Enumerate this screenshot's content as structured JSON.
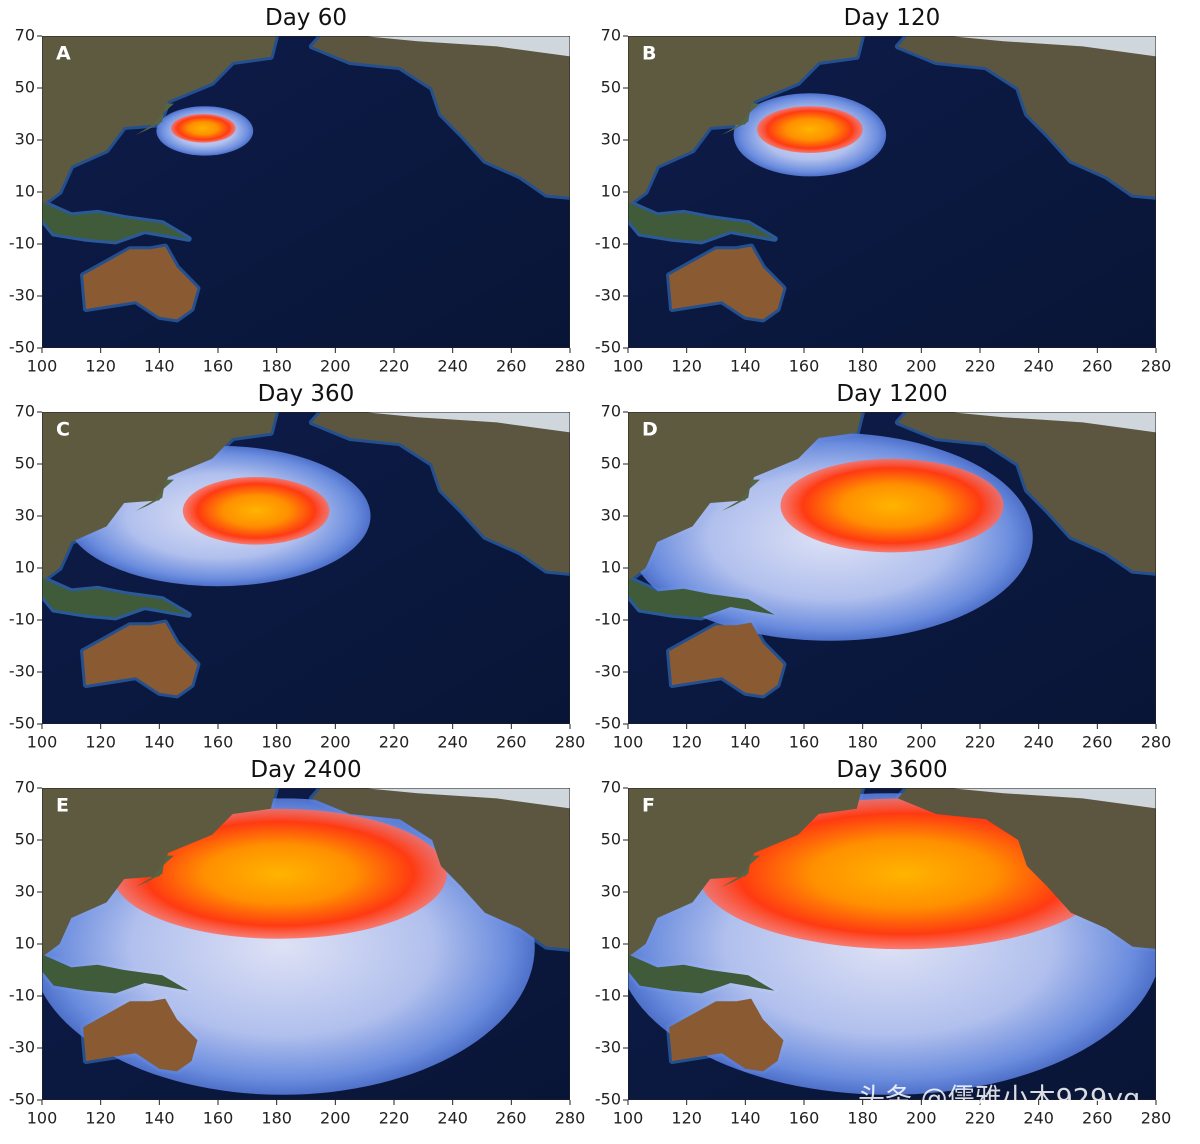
{
  "chart_data": [
    {
      "type": "map",
      "title": "Day 60",
      "label": "A",
      "xlim": [
        100,
        280
      ],
      "ylim": [
        -50,
        70
      ],
      "xticks": [
        100,
        120,
        140,
        160,
        180,
        200,
        220,
        240,
        260,
        280
      ],
      "yticks": [
        -50,
        -30,
        -10,
        10,
        30,
        50,
        70
      ]
    },
    {
      "type": "map",
      "title": "Day 120",
      "label": "B",
      "xlim": [
        100,
        280
      ],
      "ylim": [
        -50,
        70
      ],
      "xticks": [
        100,
        120,
        140,
        160,
        180,
        200,
        220,
        240,
        260,
        280
      ],
      "yticks": [
        -50,
        -30,
        -10,
        10,
        30,
        50,
        70
      ]
    },
    {
      "type": "map",
      "title": "Day 360",
      "label": "C",
      "xlim": [
        100,
        280
      ],
      "ylim": [
        -50,
        70
      ],
      "xticks": [
        100,
        120,
        140,
        160,
        180,
        200,
        220,
        240,
        260,
        280
      ],
      "yticks": [
        -50,
        -30,
        -10,
        10,
        30,
        50,
        70
      ]
    },
    {
      "type": "map",
      "title": "Day 1200",
      "label": "D",
      "xlim": [
        100,
        280
      ],
      "ylim": [
        -50,
        70
      ],
      "xticks": [
        100,
        120,
        140,
        160,
        180,
        200,
        220,
        240,
        260,
        280
      ],
      "yticks": [
        -50,
        -30,
        -10,
        10,
        30,
        50,
        70
      ]
    },
    {
      "type": "map",
      "title": "Day 2400",
      "label": "E",
      "xlim": [
        100,
        280
      ],
      "ylim": [
        -50,
        70
      ],
      "xticks": [
        100,
        120,
        140,
        160,
        180,
        200,
        220,
        240,
        260,
        280
      ],
      "yticks": [
        -50,
        -30,
        -10,
        10,
        30,
        50,
        70
      ]
    },
    {
      "type": "map",
      "title": "Day 3600",
      "label": "F",
      "xlim": [
        100,
        280
      ],
      "ylim": [
        -50,
        70
      ],
      "xticks": [
        100,
        120,
        140,
        160,
        180,
        200,
        220,
        240,
        260,
        280
      ],
      "yticks": [
        -50,
        -30,
        -10,
        10,
        30,
        50,
        70
      ]
    }
  ],
  "watermark": "头条 @儒雅小木929yq"
}
